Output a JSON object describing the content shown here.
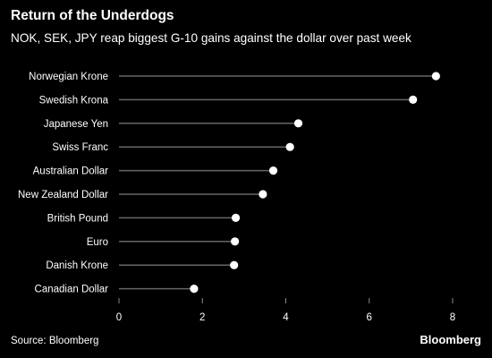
{
  "header": {
    "title": "Return of the Underdogs",
    "subtitle": "NOK, SEK, JPY reap biggest G-10 gains against the dollar over past week"
  },
  "footer": {
    "source": "Source: Bloomberg",
    "brand": "Bloomberg"
  },
  "colors": {
    "background": "#000000",
    "text": "#ffffff",
    "stem": "#666666",
    "marker": "#ffffff"
  },
  "chart_data": {
    "type": "scatter",
    "style": "lollipop",
    "orientation": "horizontal",
    "categories": [
      "Norwegian Krone",
      "Swedish Krona",
      "Japanese Yen",
      "Swiss Franc",
      "Australian Dollar",
      "New Zealand Dollar",
      "British Pound",
      "Euro",
      "Danish Krone",
      "Canadian Dollar"
    ],
    "values": [
      7.6,
      7.05,
      4.3,
      4.1,
      3.7,
      3.45,
      2.8,
      2.78,
      2.76,
      1.8
    ],
    "xlim": [
      0,
      8
    ],
    "xticks": [
      "0",
      "2",
      "4",
      "6",
      "8"
    ],
    "grid": false,
    "legend": "none"
  }
}
